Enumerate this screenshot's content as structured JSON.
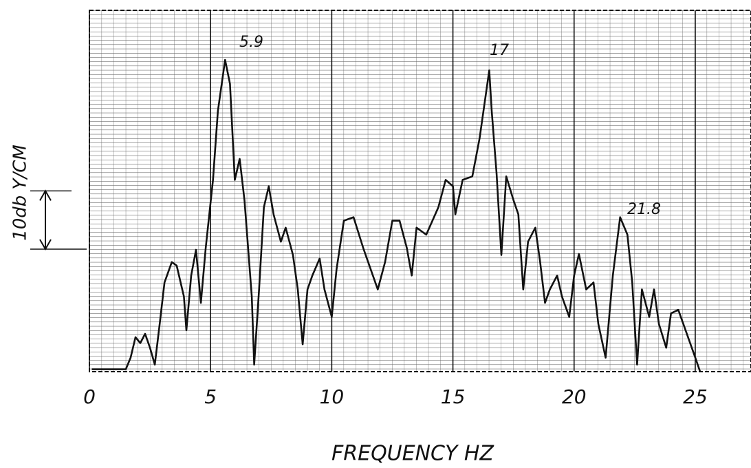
{
  "chart_data": {
    "type": "line",
    "xlabel": "FREQUENCY HZ",
    "annotations": [
      "5.9",
      "17",
      "21.8"
    ],
    "scale_bar": {
      "label": "10db Y/CM",
      "value": 10
    },
    "x": [
      0.1,
      1.5,
      1.7,
      1.9,
      2.1,
      2.3,
      2.5,
      2.7,
      2.9,
      3.1,
      3.4,
      3.6,
      3.9,
      4.0,
      4.2,
      4.4,
      4.6,
      4.8,
      5.1,
      5.3,
      5.6,
      5.8,
      6.0,
      6.2,
      6.4,
      6.7,
      6.8,
      7.0,
      7.2,
      7.4,
      7.6,
      7.9,
      8.1,
      8.4,
      8.6,
      8.8,
      9.0,
      9.2,
      9.5,
      9.7,
      10.0,
      10.2,
      10.5,
      10.9,
      11.3,
      11.9,
      12.2,
      12.5,
      12.8,
      13.1,
      13.3,
      13.5,
      13.9,
      14.4,
      14.7,
      15.0,
      15.1,
      15.4,
      15.8,
      16.1,
      16.5,
      16.6,
      16.8,
      17.0,
      17.2,
      17.5,
      17.7,
      17.9,
      18.1,
      18.4,
      18.6,
      18.8,
      19.0,
      19.3,
      19.5,
      19.8,
      20.0,
      20.2,
      20.5,
      20.8,
      21.0,
      21.3,
      21.6,
      21.9,
      22.2,
      22.4,
      22.6,
      22.8,
      23.1,
      23.3,
      23.5,
      23.8,
      24.0,
      24.3,
      24.6,
      25.0,
      25.2
    ],
    "values": [
      0.4,
      0.4,
      2.4,
      5.9,
      4.9,
      6.5,
      4.1,
      1.2,
      8.2,
      15.3,
      18.8,
      18.2,
      12.9,
      7.1,
      16.5,
      20.9,
      11.8,
      21.2,
      32.9,
      44.7,
      53.5,
      49.4,
      32.9,
      36.5,
      29.4,
      12.9,
      1.2,
      14.1,
      28.2,
      31.8,
      27.0,
      22.3,
      24.7,
      20.0,
      14.1,
      4.7,
      14.1,
      16.5,
      19.4,
      14.1,
      9.4,
      17.6,
      25.9,
      26.5,
      21.2,
      14.1,
      18.8,
      25.9,
      25.9,
      21.2,
      16.5,
      24.7,
      23.5,
      28.2,
      32.9,
      31.8,
      27.0,
      32.9,
      33.5,
      40.0,
      51.7,
      44.7,
      34.1,
      20.0,
      33.5,
      29.4,
      27.0,
      14.1,
      22.3,
      24.7,
      18.8,
      11.8,
      14.1,
      16.5,
      12.9,
      9.4,
      16.5,
      20.2,
      14.1,
      15.3,
      8.2,
      2.4,
      16.5,
      26.5,
      23.5,
      15.3,
      1.2,
      14.1,
      9.4,
      14.1,
      8.2,
      4.1,
      10.0,
      10.6,
      7.1,
      2.4,
      0
    ],
    "color": "#111111",
    "xlim": [
      0,
      27.3
    ],
    "ylim": [
      0,
      62
    ],
    "xticks": [
      0,
      5,
      10,
      15,
      20,
      25
    ],
    "grid": true
  }
}
